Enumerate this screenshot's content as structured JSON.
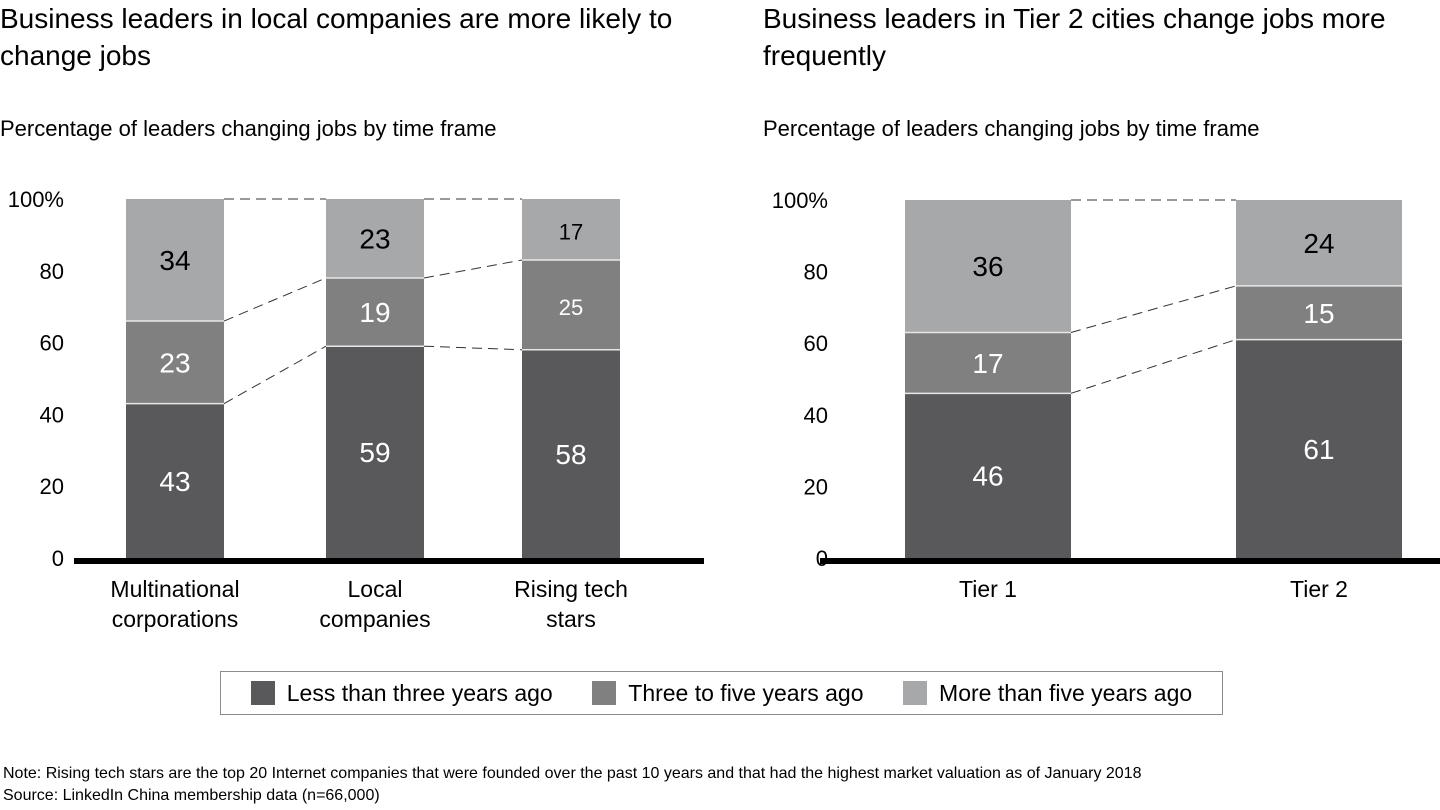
{
  "chart_data": [
    {
      "type": "bar",
      "stacked": true,
      "title": "Business leaders in local companies are more likely to change jobs",
      "subtitle": "Percentage of leaders changing jobs by time frame",
      "categories": [
        "Multinational corporations",
        "Local companies",
        "Rising tech stars"
      ],
      "category_lines": [
        [
          "Multinational",
          "corporations"
        ],
        [
          "Local",
          "companies"
        ],
        [
          "Rising tech",
          "stars"
        ]
      ],
      "series": [
        {
          "name": "Less than three years ago",
          "values": [
            43,
            59,
            58
          ]
        },
        {
          "name": "Three to five years ago",
          "values": [
            23,
            19,
            25
          ]
        },
        {
          "name": "More than five years ago",
          "values": [
            34,
            23,
            17
          ]
        }
      ],
      "yticks": [
        "0",
        "20",
        "40",
        "60",
        "80",
        "100%"
      ],
      "ylim": [
        0,
        100
      ],
      "xlabel": "",
      "ylabel": "",
      "connector_lines": "dashed"
    },
    {
      "type": "bar",
      "stacked": true,
      "title": "Business leaders in Tier 2 cities change jobs more frequently",
      "subtitle": "Percentage of leaders changing jobs by time frame",
      "categories": [
        "Tier 1",
        "Tier 2"
      ],
      "category_lines": [
        [
          "Tier 1"
        ],
        [
          "Tier 2"
        ]
      ],
      "series": [
        {
          "name": "Less than three years ago",
          "values": [
            46,
            61
          ]
        },
        {
          "name": "Three to five years ago",
          "values": [
            17,
            15
          ]
        },
        {
          "name": "More than five years ago",
          "values": [
            36,
            24
          ]
        }
      ],
      "yticks": [
        "0",
        "20",
        "40",
        "60",
        "80",
        "100%"
      ],
      "ylim": [
        0,
        100
      ],
      "xlabel": "",
      "ylabel": "",
      "connector_lines": "dashed"
    }
  ],
  "colors": {
    "less_than_three": "#59595b",
    "three_to_five": "#808080",
    "more_than_five": "#a7a8aa",
    "label_dark": "#000000",
    "label_light": "#ffffff"
  },
  "legend": {
    "position": "bottom-center",
    "items": [
      {
        "label": "Less than three years ago",
        "color": "#59595b"
      },
      {
        "label": "Three to five years ago",
        "color": "#808080"
      },
      {
        "label": "More than five years ago",
        "color": "#a7a8aa"
      }
    ]
  },
  "footnotes": {
    "note": "Note: Rising tech stars are the top 20 Internet companies that were founded over the past 10 years and that had the highest market valuation as of January 2018",
    "source": "Source: LinkedIn China membership data (n=66,000)"
  }
}
